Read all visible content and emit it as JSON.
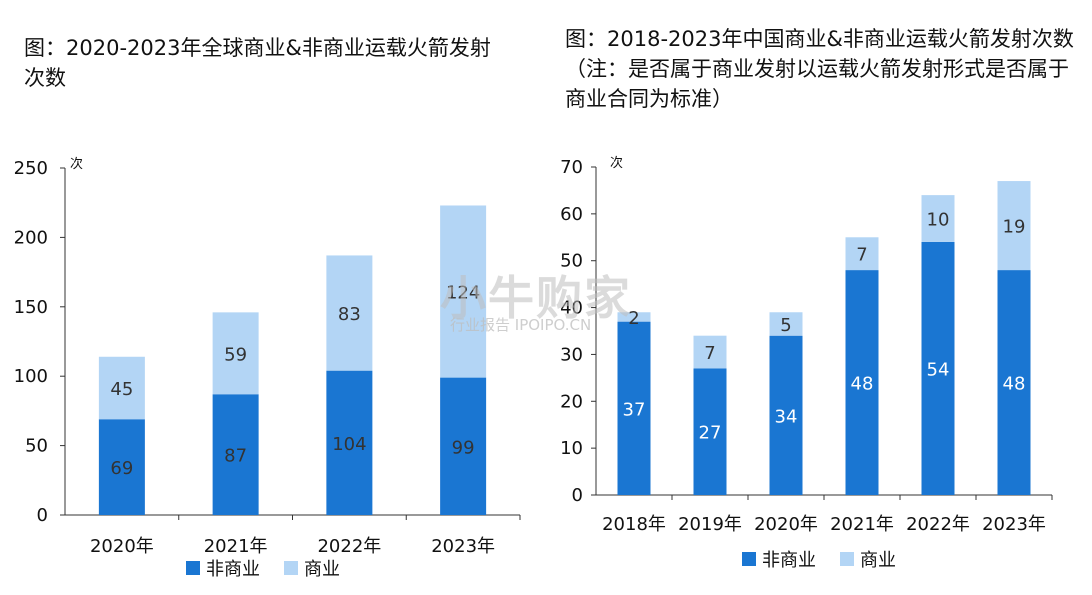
{
  "colors": {
    "non_commercial": "#1a76d2",
    "commercial": "#b3d5f5",
    "axis": "#333333",
    "label_dark": "#333333",
    "label_light": "#ffffff"
  },
  "left_title": "图：2020-2023年全球商业&非商业运载火箭发射次数",
  "right_title": "图：2018-2023年中国商业&非商业运载火箭发射次数（注：是否属于商业发射以运载火箭发射形式是否属于商业合同为标准）",
  "watermark": {
    "main": "小牛购家",
    "sub": "行业报告 IPOIPO.CN"
  },
  "chart_data": [
    {
      "type": "bar",
      "stacked": true,
      "title": "图：2020-2023年全球商业&非商业运载火箭发射次数",
      "unit_label": "次",
      "categories": [
        "2020年",
        "2021年",
        "2022年",
        "2023年"
      ],
      "series": [
        {
          "name": "非商业",
          "values": [
            69,
            87,
            104,
            99
          ]
        },
        {
          "name": "商业",
          "values": [
            45,
            59,
            83,
            124
          ]
        }
      ],
      "ylim": [
        0,
        250
      ],
      "yticks": [
        "0",
        "50",
        "100",
        "150",
        "200",
        "250"
      ],
      "legend": "bottom",
      "grid": false
    },
    {
      "type": "bar",
      "stacked": true,
      "title": "图：2018-2023年中国商业&非商业运载火箭发射次数（注：是否属于商业发射以运载火箭发射形式是否属于商业合同为标准）",
      "unit_label": "次",
      "categories": [
        "2018年",
        "2019年",
        "2020年",
        "2021年",
        "2022年",
        "2023年"
      ],
      "series": [
        {
          "name": "非商业",
          "values": [
            37,
            27,
            34,
            48,
            54,
            48
          ]
        },
        {
          "name": "商业",
          "values": [
            2,
            7,
            5,
            7,
            10,
            19
          ]
        }
      ],
      "ylim": [
        0,
        70
      ],
      "yticks": [
        "0",
        "10",
        "20",
        "30",
        "40",
        "50",
        "60",
        "70"
      ],
      "legend": "bottom",
      "grid": false
    }
  ]
}
